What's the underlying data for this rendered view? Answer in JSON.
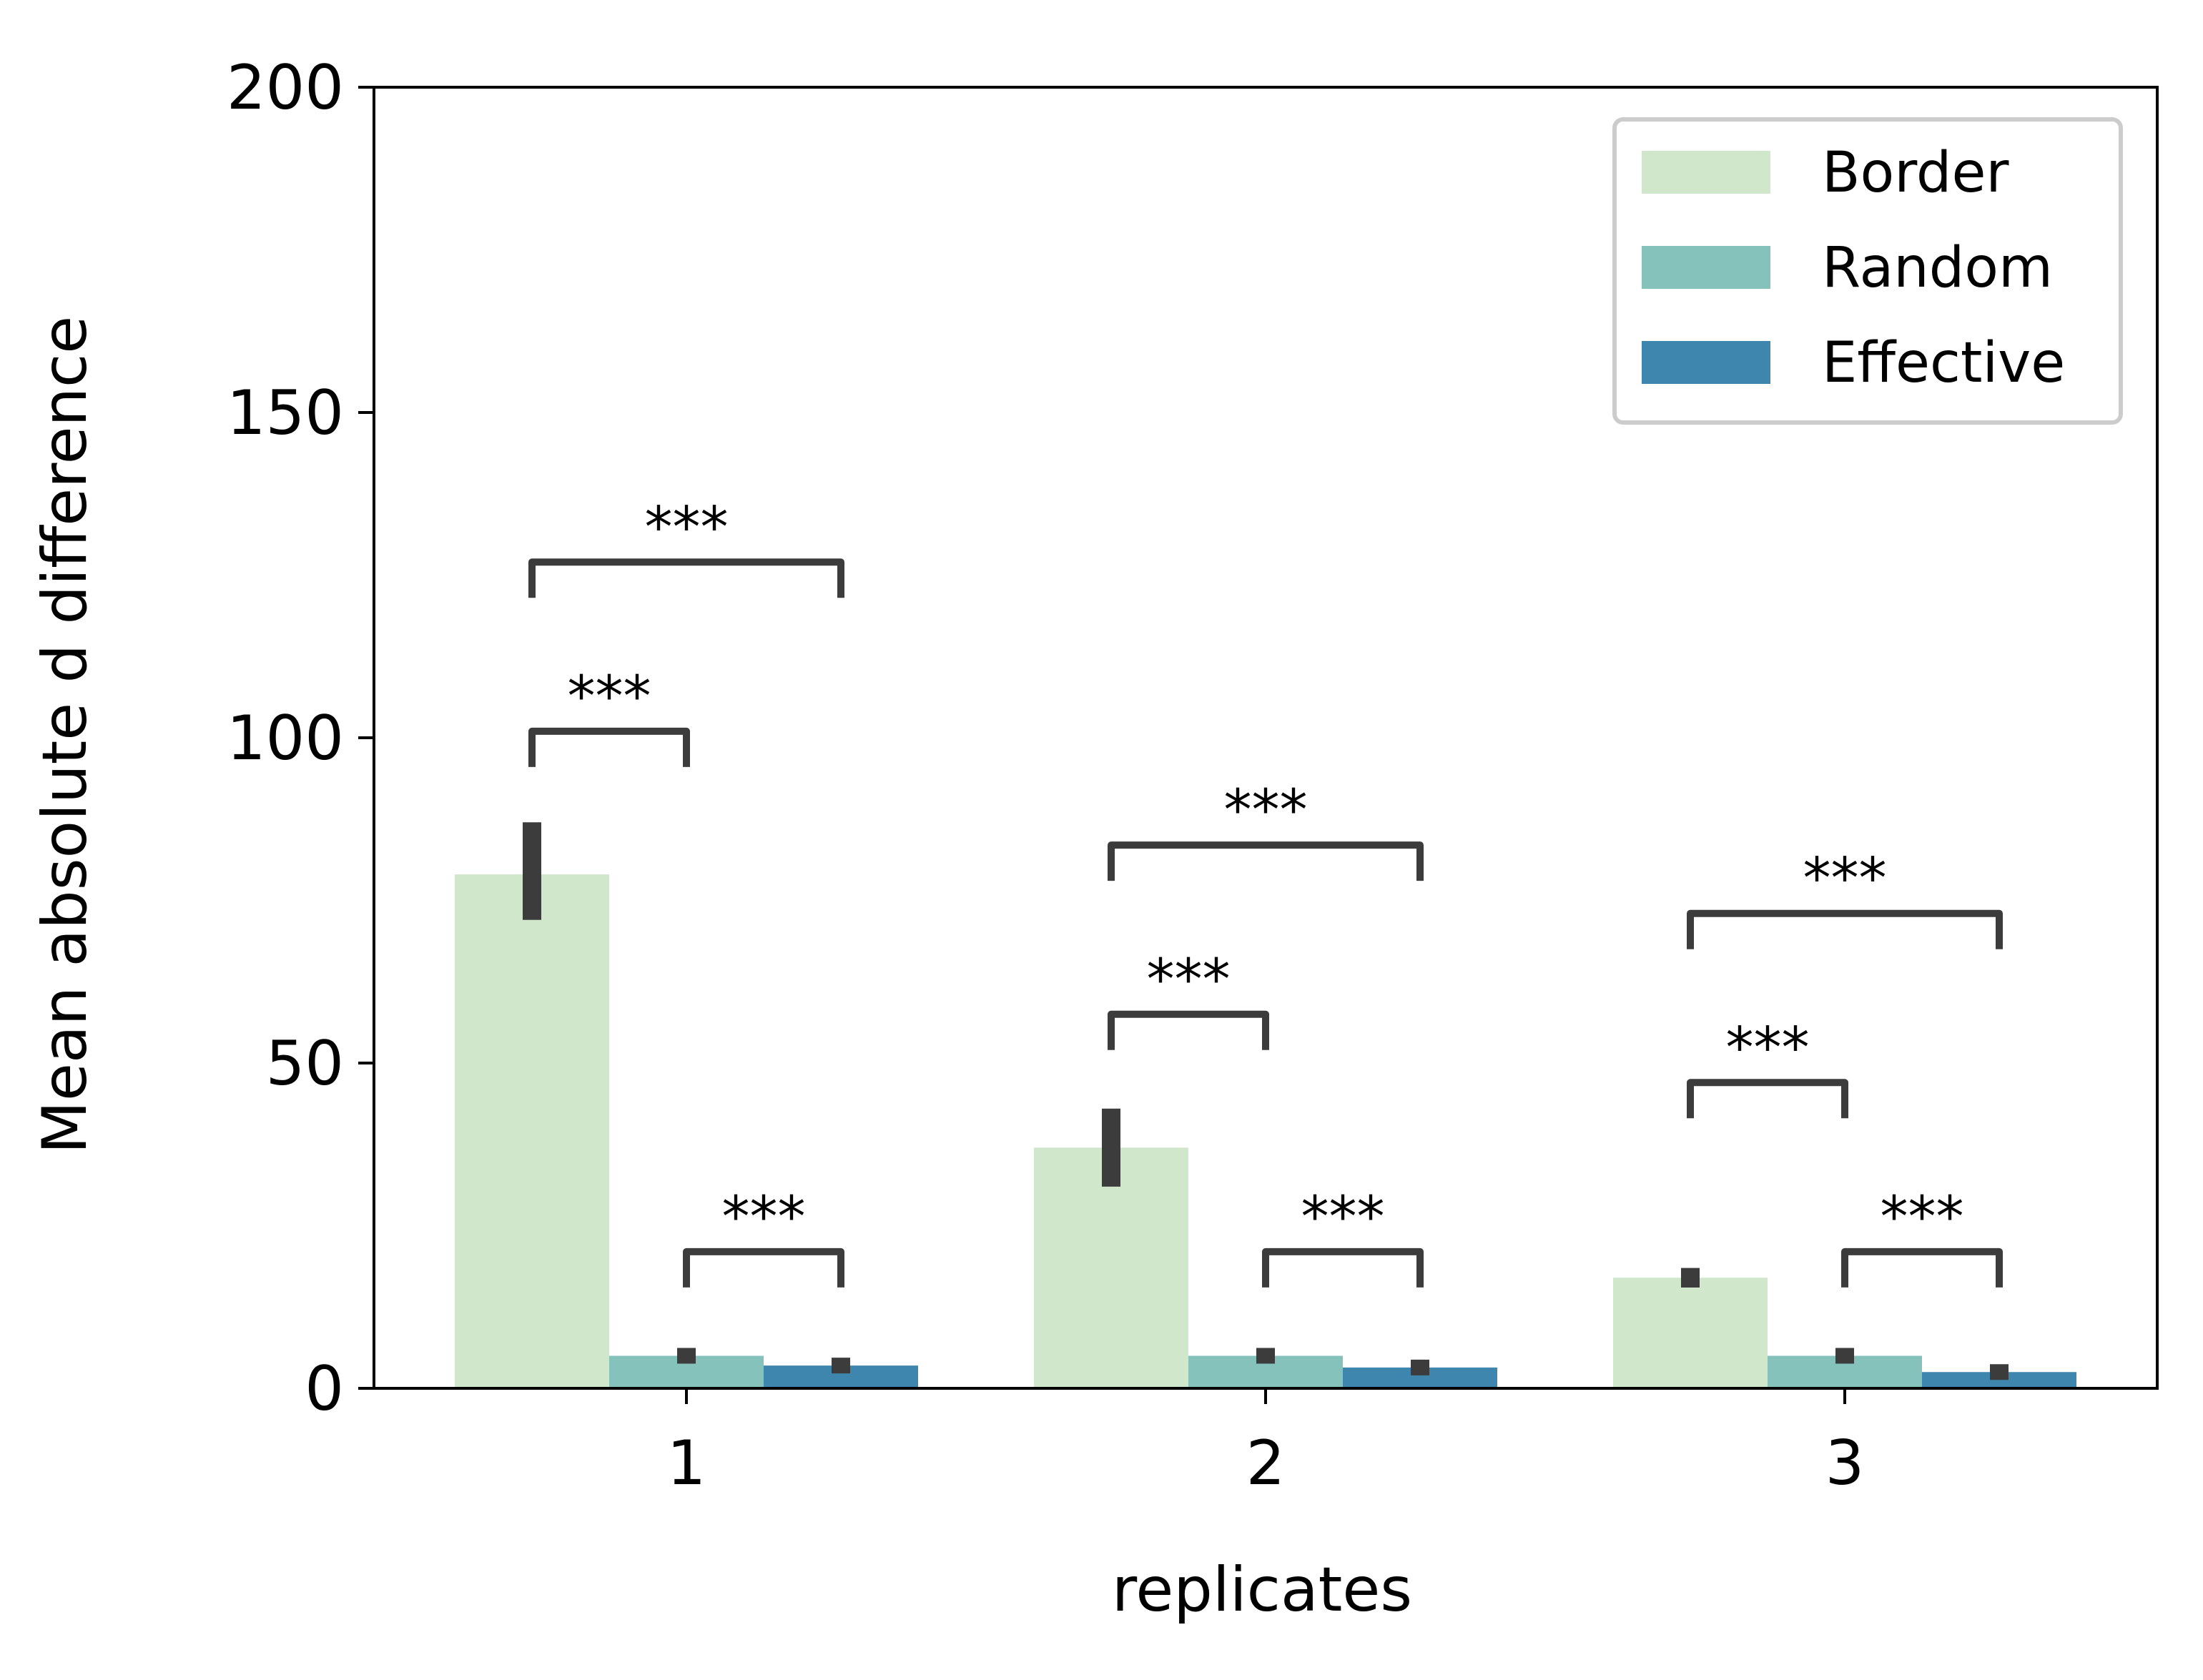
{
  "chart_data": {
    "type": "bar",
    "title": "",
    "xlabel": "replicates",
    "ylabel": "Mean absolute d difference",
    "categories": [
      "1",
      "2",
      "3"
    ],
    "ylim": [
      0,
      200
    ],
    "yticks": [
      0,
      50,
      100,
      150,
      200
    ],
    "ytick_labels": [
      "0",
      "50",
      "100",
      "150",
      "200"
    ],
    "grid": false,
    "legend_position": "top-right",
    "series": [
      {
        "name": "Border",
        "color": "#d0e7cb",
        "values": [
          79,
          37,
          17
        ],
        "error_low": [
          72,
          31,
          15.5
        ],
        "error_high": [
          87,
          43,
          18.5
        ]
      },
      {
        "name": "Random",
        "color": "#86c2bc",
        "values": [
          5,
          5,
          5
        ],
        "error_low": [
          4,
          4,
          4
        ],
        "error_high": [
          6,
          6,
          6
        ]
      },
      {
        "name": "Effective",
        "color": "#3e86ad",
        "values": [
          3.5,
          3.2,
          2.5
        ],
        "error_low": [
          2.5,
          2.3,
          1.5
        ],
        "error_high": [
          4.5,
          4.1,
          3.5
        ]
      }
    ],
    "significance": [
      {
        "category": 0,
        "from": 0,
        "to": 2,
        "y": 127,
        "label": "***"
      },
      {
        "category": 0,
        "from": 0,
        "to": 1,
        "y": 101,
        "label": "***"
      },
      {
        "category": 0,
        "from": 1,
        "to": 2,
        "y": 21,
        "label": "***"
      },
      {
        "category": 1,
        "from": 0,
        "to": 2,
        "y": 83.5,
        "label": "***"
      },
      {
        "category": 1,
        "from": 0,
        "to": 1,
        "y": 57.5,
        "label": "***"
      },
      {
        "category": 1,
        "from": 1,
        "to": 2,
        "y": 21,
        "label": "***"
      },
      {
        "category": 2,
        "from": 0,
        "to": 2,
        "y": 73,
        "label": "***"
      },
      {
        "category": 2,
        "from": 0,
        "to": 1,
        "y": 47,
        "label": "***"
      },
      {
        "category": 2,
        "from": 1,
        "to": 2,
        "y": 21,
        "label": "***"
      }
    ],
    "colors": {
      "axis": "#000000",
      "error_bar": "#3c3c3c",
      "bracket": "#3c3c3c",
      "legend_border": "#cccccc"
    }
  }
}
